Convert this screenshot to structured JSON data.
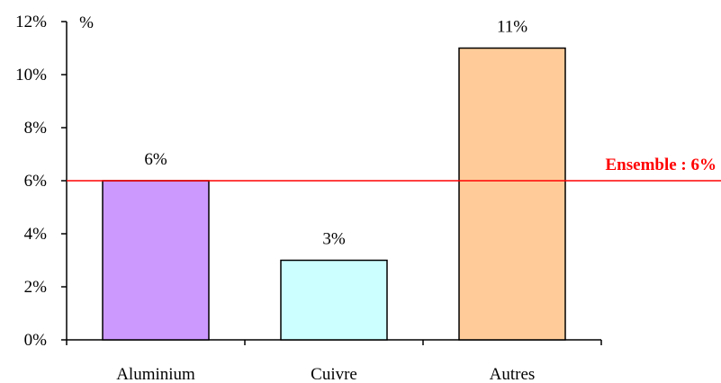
{
  "chart_data": {
    "type": "bar",
    "categories": [
      "Aluminium",
      "Cuivre",
      "Autres"
    ],
    "values": [
      6,
      3,
      11
    ],
    "data_labels": [
      "6%",
      "3%",
      "11%"
    ],
    "bar_colors": [
      "#cc99ff",
      "#ccffff",
      "#ffcc99"
    ],
    "ylim": [
      0,
      12
    ],
    "y_ticks": [
      0,
      2,
      4,
      6,
      8,
      10,
      12
    ],
    "y_tick_labels": [
      "0%",
      "2%",
      "4%",
      "6%",
      "8%",
      "10%",
      "12%"
    ],
    "y_unit": "%",
    "reference_line": {
      "value": 6,
      "label": "Ensemble : 6%",
      "color": "#ff0000"
    },
    "grid": false,
    "legend": "none"
  }
}
